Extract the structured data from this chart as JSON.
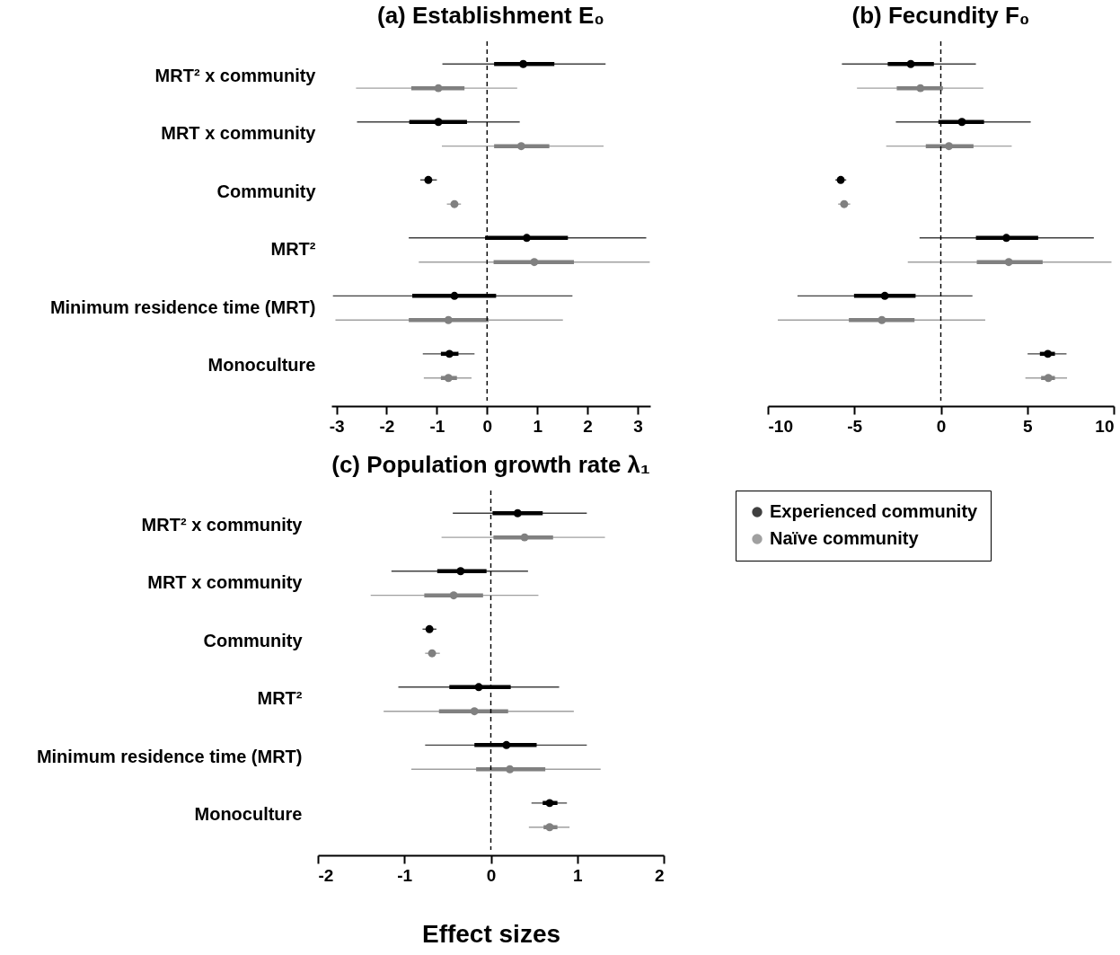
{
  "chart_data": [
    {
      "type": "scatter",
      "orientation": "horizontal",
      "title": "(a) Establishment E₀",
      "categories": [
        "MRT² x community",
        "MRT x community",
        "Community",
        "MRT²",
        "Minimum residence time (MRT)",
        "Monoculture"
      ],
      "xlim": [
        -3.1,
        3.25
      ],
      "xticks": [
        -3,
        -2,
        -1,
        0,
        1,
        2,
        3
      ],
      "grid": false,
      "marker": "circle",
      "series": [
        {
          "color": "#000000",
          "values": [
            0.72,
            -0.97,
            -1.17,
            0.79,
            -0.65,
            -0.75
          ],
          "errors": [
            [
              -0.89,
              2.36
            ],
            [
              -2.59,
              0.65
            ],
            [
              -1.33,
              -1.0
            ],
            [
              -1.56,
              3.17
            ],
            [
              -3.07,
              1.7
            ],
            [
              -1.28,
              -0.25
            ]
          ]
        },
        {
          "color": "#808080",
          "values": [
            -0.97,
            0.68,
            -0.65,
            0.94,
            -0.77,
            -0.77
          ],
          "errors": [
            [
              -2.61,
              0.6
            ],
            [
              -0.9,
              2.32
            ],
            [
              -0.8,
              -0.52
            ],
            [
              -1.36,
              3.24
            ],
            [
              -3.02,
              1.51
            ],
            [
              -1.26,
              -0.31
            ]
          ]
        },
        {
          "type": "bar",
          "color": "#000000",
          "base": [
            0.14,
            -1.55,
            null,
            -0.04,
            -1.49,
            -0.92
          ],
          "values": [
            1.2,
            1.15,
            null,
            1.65,
            1.67,
            0.35
          ]
        },
        {
          "type": "bar",
          "color": "#808080",
          "base": [
            -1.51,
            0.14,
            null,
            0.13,
            -1.56,
            -0.92
          ],
          "values": [
            1.06,
            1.1,
            null,
            1.6,
            1.59,
            0.32
          ]
        }
      ],
      "ref_lines": [
        {
          "axis": "x",
          "value": 0,
          "line_style": "dashed"
        }
      ]
    },
    {
      "type": "scatter",
      "orientation": "horizontal",
      "title": "(b) Fecundity F₀",
      "categories": [
        null,
        null,
        null,
        null,
        null,
        null
      ],
      "xlim": [
        -10,
        10
      ],
      "xticks": [
        -10,
        -5,
        0,
        5,
        10
      ],
      "grid": false,
      "marker": "circle",
      "series": [
        {
          "color": "#000000",
          "values": [
            -1.74,
            1.22,
            -5.79,
            3.79,
            -3.24,
            6.19
          ],
          "errors": [
            [
              -5.72,
              2.03
            ],
            [
              -2.6,
              5.2
            ],
            [
              -6.1,
              -5.47
            ],
            [
              -1.23,
              8.85
            ],
            [
              -8.29,
              1.83
            ],
            [
              5.02,
              7.27
            ]
          ]
        },
        {
          "color": "#808080",
          "values": [
            -1.18,
            0.47,
            -5.59,
            3.93,
            -3.41,
            6.22
          ],
          "errors": [
            [
              -4.85,
              2.46
            ],
            [
              -3.16,
              4.1
            ],
            [
              -5.94,
              -5.24
            ],
            [
              -1.91,
              9.87
            ],
            [
              -9.43,
              2.57
            ],
            [
              4.89,
              7.3
            ]
          ]
        },
        {
          "type": "bar",
          "color": "#000000",
          "base": [
            -3.07,
            -0.14,
            null,
            2.03,
            -5.02,
            5.73
          ],
          "values": [
            2.67,
            2.64,
            null,
            3.6,
            3.56,
            0.87
          ]
        },
        {
          "type": "bar",
          "color": "#808080",
          "base": [
            -2.55,
            -0.87,
            null,
            2.08,
            -5.32,
            5.8
          ],
          "values": [
            2.67,
            2.76,
            null,
            3.81,
            3.8,
            0.8
          ]
        }
      ],
      "ref_lines": [
        {
          "axis": "x",
          "value": 0,
          "line_style": "dashed"
        }
      ]
    },
    {
      "type": "scatter",
      "orientation": "horizontal",
      "title": "(c) Population growth rate λ₁",
      "xlabel": "Effect sizes",
      "categories": [
        "MRT² x community",
        "MRT x community",
        "Community",
        "MRT²",
        "Minimum residence time (MRT)",
        "Monoculture"
      ],
      "xlim": [
        -2,
        2
      ],
      "xticks": [
        -2,
        -1,
        0,
        1,
        2
      ],
      "grid": false,
      "marker": "circle",
      "legend": "right",
      "series": [
        {
          "name": "Experienced community",
          "color": "#000000",
          "values": [
            0.31,
            -0.35,
            -0.71,
            -0.14,
            0.18,
            0.68
          ],
          "errors": [
            [
              -0.44,
              1.11
            ],
            [
              -1.15,
              0.43
            ],
            [
              -0.79,
              -0.63
            ],
            [
              -1.07,
              0.79
            ],
            [
              -0.76,
              1.11
            ],
            [
              0.47,
              0.88
            ]
          ]
        },
        {
          "name": "Naïve community",
          "color": "#808080",
          "values": [
            0.39,
            -0.43,
            -0.68,
            -0.19,
            0.22,
            0.68
          ],
          "errors": [
            [
              -0.57,
              1.32
            ],
            [
              -1.39,
              0.55
            ],
            [
              -0.76,
              -0.59
            ],
            [
              -1.24,
              0.96
            ],
            [
              -0.92,
              1.27
            ],
            [
              0.44,
              0.91
            ]
          ]
        },
        {
          "type": "bar",
          "color": "#000000",
          "base": [
            0.02,
            -0.62,
            null,
            -0.48,
            -0.19,
            0.6
          ],
          "values": [
            0.58,
            0.57,
            null,
            0.71,
            0.72,
            0.17
          ]
        },
        {
          "type": "bar",
          "color": "#808080",
          "base": [
            0.03,
            -0.77,
            null,
            -0.6,
            -0.17,
            0.61
          ],
          "values": [
            0.69,
            0.68,
            null,
            0.8,
            0.8,
            0.16
          ]
        }
      ],
      "ref_lines": [
        {
          "axis": "x",
          "value": 0,
          "line_style": "dashed"
        }
      ]
    }
  ]
}
